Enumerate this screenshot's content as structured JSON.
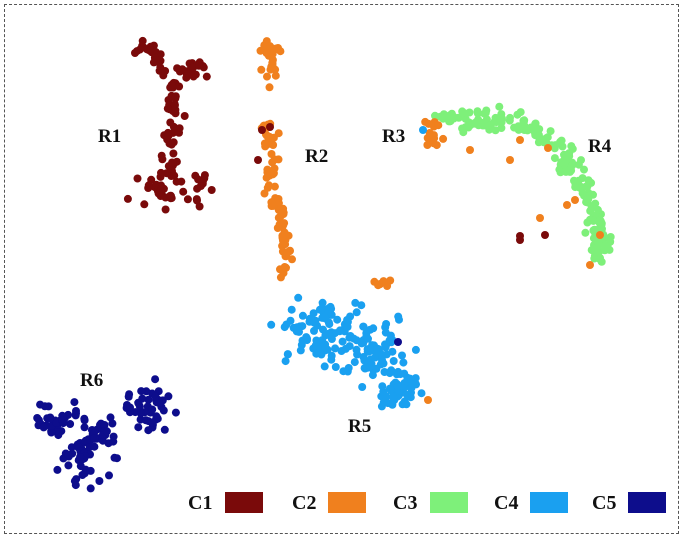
{
  "chart_data": {
    "type": "scatter",
    "title": "",
    "xlabel": "",
    "ylabel": "",
    "grid": false,
    "legend_position": "bottom-right",
    "series": [
      {
        "name": "C1",
        "color": "#7a0a0a"
      },
      {
        "name": "C2",
        "color": "#f0801e"
      },
      {
        "name": "C3",
        "color": "#7ef07a"
      },
      {
        "name": "C4",
        "color": "#1aa0f0"
      },
      {
        "name": "C5",
        "color": "#0d0d8c"
      }
    ],
    "region_labels": [
      "R1",
      "R2",
      "R3",
      "R4",
      "R5",
      "R6"
    ]
  }
}
